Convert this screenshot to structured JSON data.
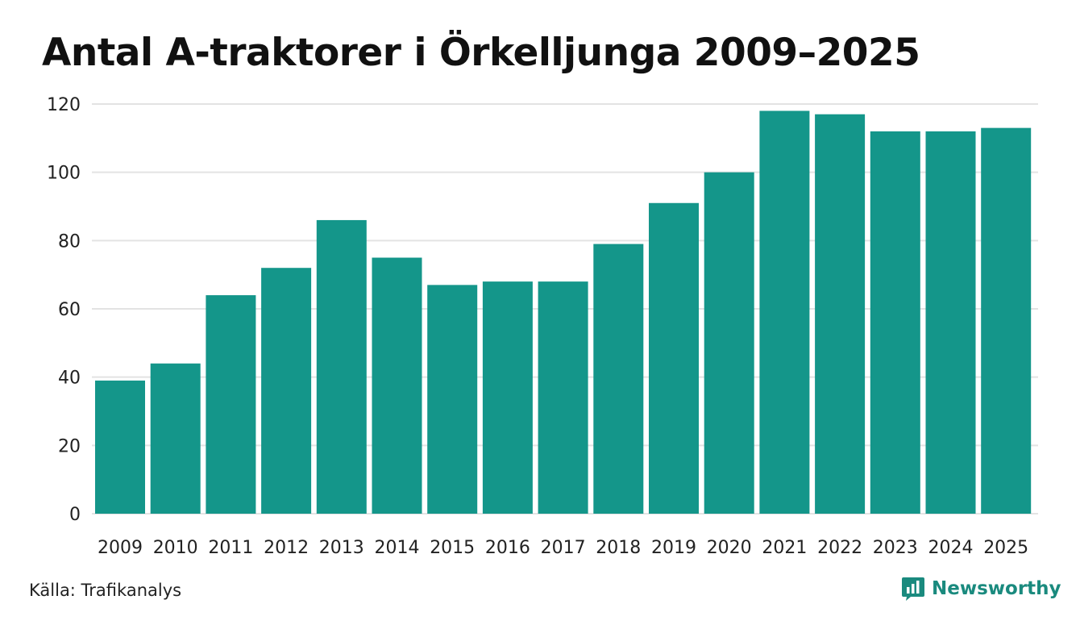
{
  "chart_data": {
    "type": "bar",
    "title": "Antal A-traktorer i Örkelljunga 2009–2025",
    "categories": [
      "2009",
      "2010",
      "2011",
      "2012",
      "2013",
      "2014",
      "2015",
      "2016",
      "2017",
      "2018",
      "2019",
      "2020",
      "2021",
      "2022",
      "2023",
      "2024",
      "2025"
    ],
    "values": [
      39,
      44,
      64,
      72,
      86,
      75,
      67,
      68,
      68,
      79,
      91,
      100,
      118,
      117,
      112,
      112,
      113
    ],
    "ylim": [
      0,
      120
    ],
    "yticks": [
      0,
      20,
      40,
      60,
      80,
      100,
      120
    ],
    "grid": true,
    "bar_color": "#14968a",
    "grid_color": "#e3e3e3"
  },
  "footer": {
    "source": "Källa: Trafikanalys",
    "brand": "Newsworthy",
    "brand_color": "#1a8a7e"
  }
}
